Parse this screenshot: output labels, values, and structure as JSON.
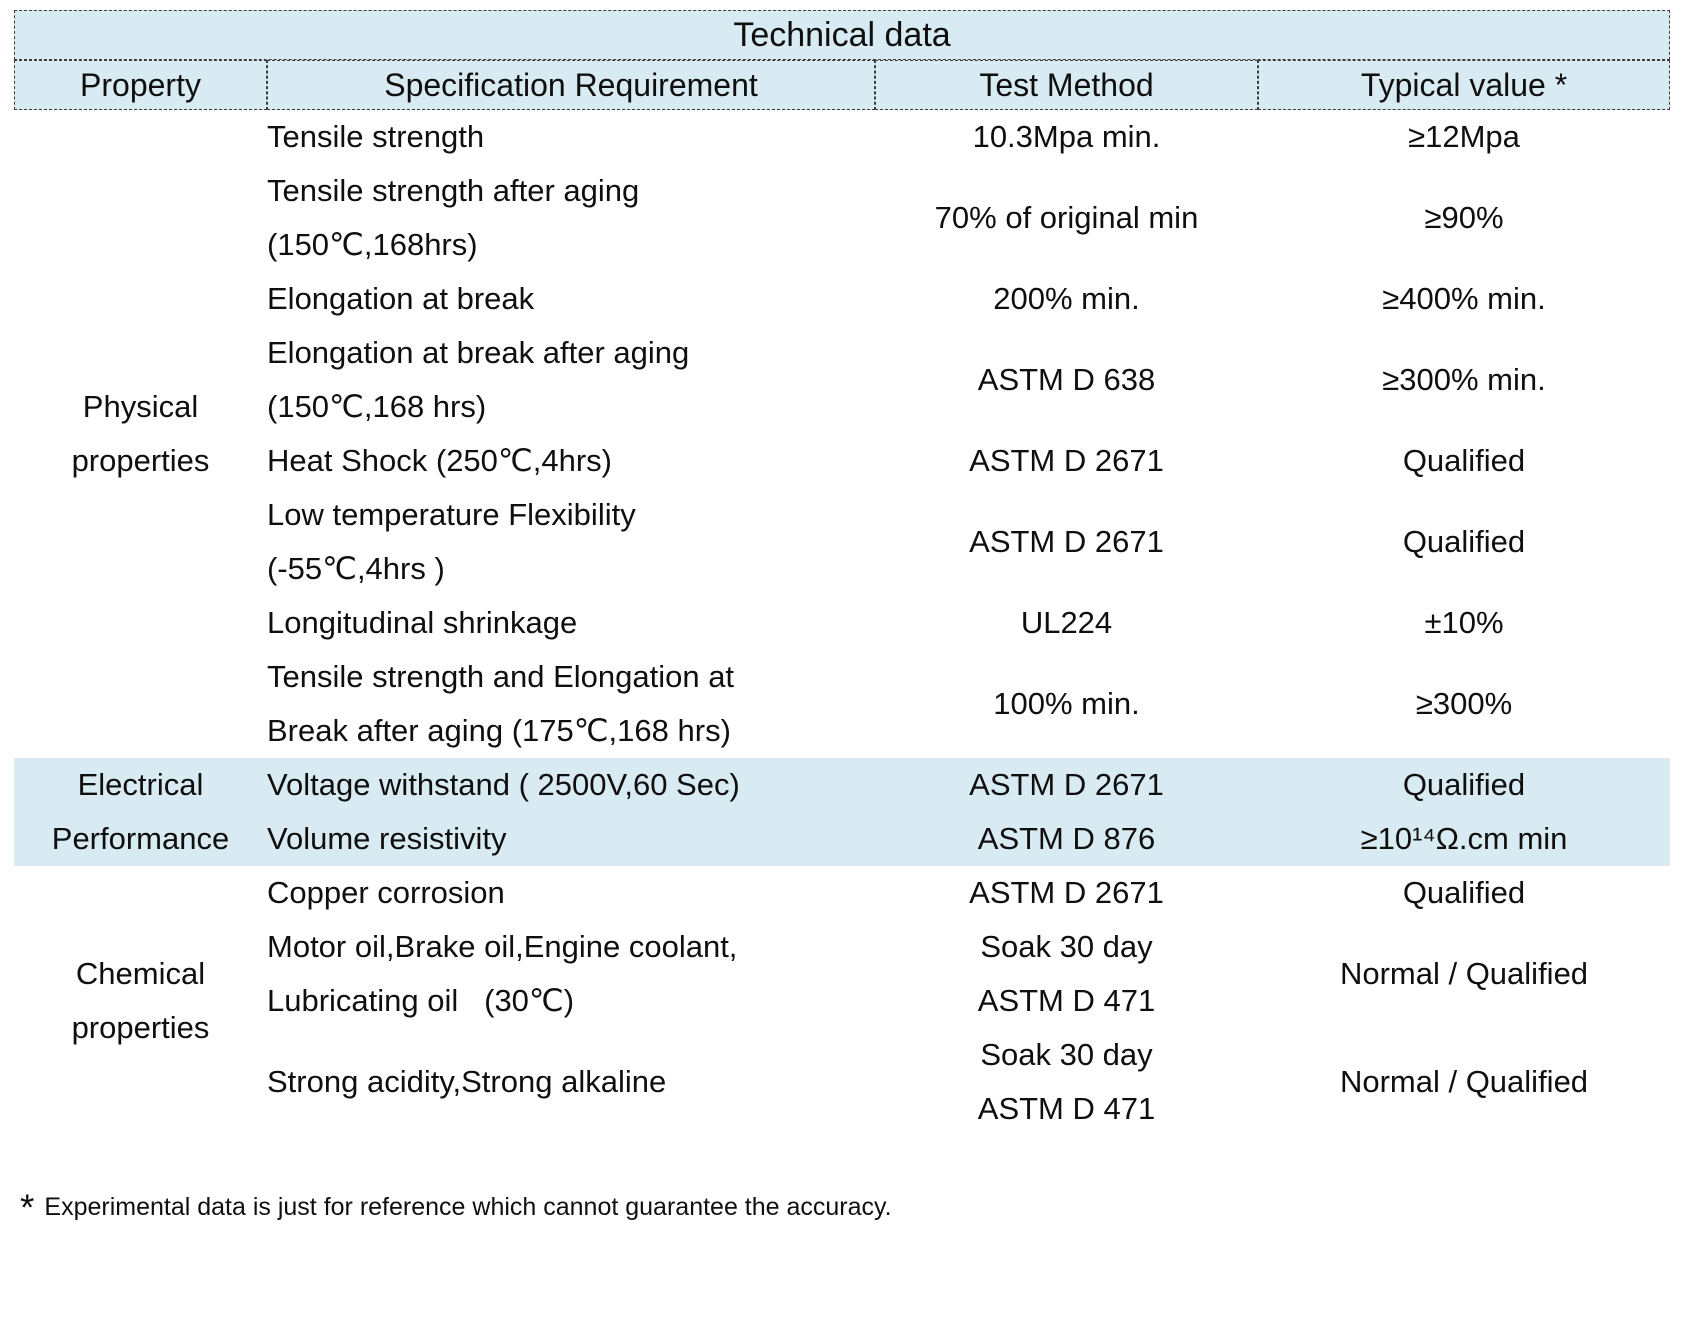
{
  "colors": {
    "header_bg": "#d9ebf2",
    "highlight_bg": "#d9ebf2",
    "border": "#3c3c3c",
    "text": "#0f0f0f"
  },
  "table": {
    "title": "Technical data",
    "columns": [
      {
        "label": "Property"
      },
      {
        "label": "Specification Requirement"
      },
      {
        "label": "Test Method"
      },
      {
        "label": "Typical value *"
      }
    ],
    "groups": [
      {
        "property_lines": [
          "Physical",
          "properties"
        ],
        "highlighted": false,
        "rows": [
          {
            "spec": [
              "Tensile strength"
            ],
            "test": [
              "10.3Mpa min."
            ],
            "typical": [
              "≥12Mpa"
            ]
          },
          {
            "spec": [
              "Tensile strength after aging",
              "(150℃,168hrs)"
            ],
            "test": [
              "70% of original min"
            ],
            "typical": [
              "≥90%"
            ]
          },
          {
            "spec": [
              "Elongation at break"
            ],
            "test": [
              "200% min."
            ],
            "typical": [
              "≥400% min."
            ]
          },
          {
            "spec": [
              "Elongation at break after aging",
              "(150℃,168 hrs)"
            ],
            "test": [
              "ASTM D 638"
            ],
            "typical": [
              "≥300% min."
            ]
          },
          {
            "spec": [
              "Heat Shock (250℃,4hrs)"
            ],
            "test": [
              "ASTM D 2671"
            ],
            "typical": [
              "Qualified"
            ]
          },
          {
            "spec": [
              "Low temperature Flexibility",
              "(-55℃,4hrs )"
            ],
            "test": [
              "ASTM D 2671"
            ],
            "typical": [
              "Qualified"
            ]
          },
          {
            "spec": [
              "Longitudinal shrinkage"
            ],
            "test": [
              "UL224"
            ],
            "typical": [
              "±10%"
            ]
          },
          {
            "spec": [
              "Tensile strength and Elongation at",
              "Break after aging (175℃,168 hrs)"
            ],
            "test": [
              "100% min."
            ],
            "typical": [
              "≥300%"
            ]
          }
        ]
      },
      {
        "property_lines": [
          "Electrical",
          "Performance"
        ],
        "highlighted": true,
        "rows": [
          {
            "spec": [
              "Voltage withstand ( 2500V,60 Sec)"
            ],
            "test": [
              "ASTM D 2671"
            ],
            "typical": [
              "Qualified"
            ]
          },
          {
            "spec": [
              "Volume resistivity"
            ],
            "test": [
              "ASTM D 876"
            ],
            "typical": [
              "≥10¹⁴Ω.cm min"
            ]
          }
        ]
      },
      {
        "property_lines": [
          "Chemical",
          "properties"
        ],
        "highlighted": false,
        "rows": [
          {
            "spec": [
              "Copper corrosion"
            ],
            "test": [
              "ASTM D 2671"
            ],
            "typical": [
              "Qualified"
            ]
          },
          {
            "spec": [
              "Motor oil,Brake oil,Engine coolant,",
              "Lubricating oil   (30℃)"
            ],
            "test": [
              "Soak 30 day",
              "ASTM D 471"
            ],
            "typical": [
              "Normal / Qualified"
            ]
          },
          {
            "spec": [
              "Strong acidity,Strong alkaline"
            ],
            "test": [
              "Soak 30 day",
              "ASTM D 471"
            ],
            "typical": [
              "Normal / Qualified"
            ]
          }
        ]
      }
    ]
  },
  "footnote": {
    "marker": "*",
    "text": "Experimental data is just for reference which cannot guarantee the accuracy."
  }
}
